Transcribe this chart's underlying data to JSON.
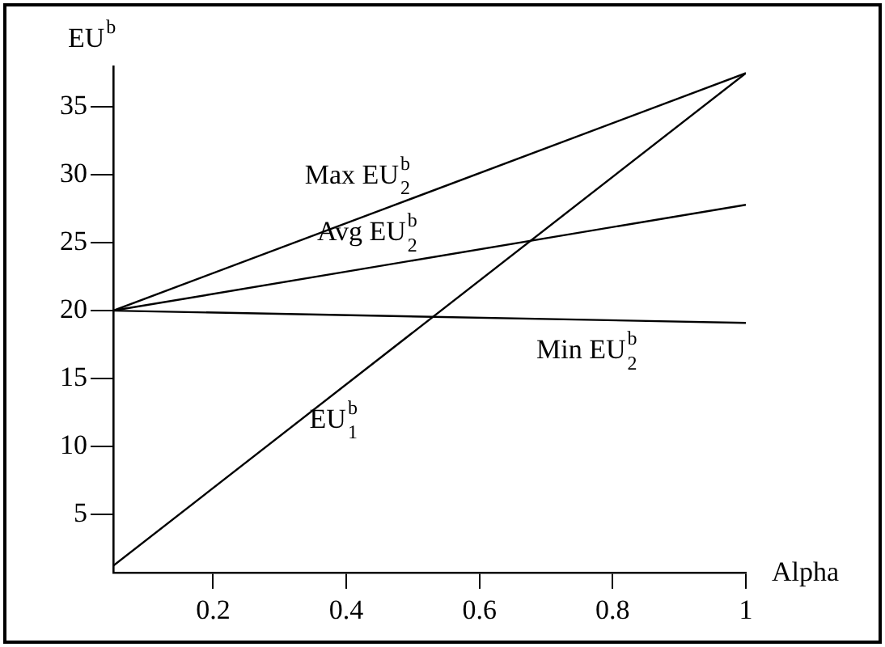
{
  "chart_data": {
    "type": "line",
    "xlabel": "Alpha",
    "ylabel": "EU$^{b}$",
    "xlim": [
      0.05,
      1
    ],
    "ylim": [
      0.7,
      38
    ],
    "xticks": [
      0.2,
      0.4,
      0.6,
      0.8,
      1
    ],
    "yticks": [
      5,
      10,
      15,
      20,
      25,
      30,
      35
    ],
    "grid": false,
    "legend": false,
    "marker": "none",
    "line_style": "solid",
    "x": [
      0.05,
      1
    ],
    "series": [
      {
        "name": "Max EU$_{2}$$^{b}$",
        "color": "#000000",
        "values": [
          20,
          37.5
        ]
      },
      {
        "name": "Avg EU$_{2}$$^{b}$",
        "color": "#000000",
        "values": [
          20,
          27.8
        ]
      },
      {
        "name": "Min EU$_{2}$$^{b}$",
        "color": "#000000",
        "values": [
          20,
          19.1
        ]
      },
      {
        "name": "EU$_{1}$$^{b}$",
        "color": "#000000",
        "values": [
          1.2,
          37.5
        ]
      }
    ]
  }
}
